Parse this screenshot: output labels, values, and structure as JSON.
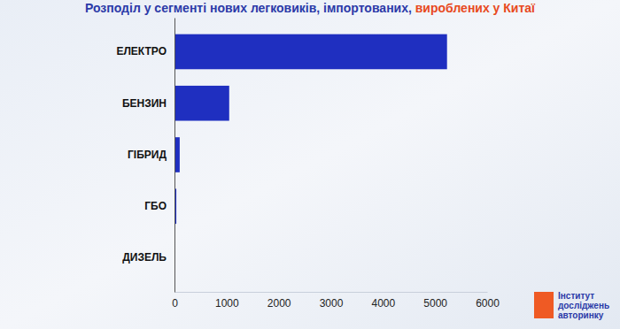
{
  "chart_data": {
    "type": "bar",
    "orientation": "horizontal",
    "title": [
      "Розподіл у сегменті нових легковиків, імпортованих, ",
      "вироблених у Китаї"
    ],
    "categories": [
      "ЕЛЕКТРО",
      "БЕНЗИН",
      "ГІБРИД",
      "ГБО",
      "ДИЗЕЛЬ"
    ],
    "values": [
      5230,
      1050,
      100,
      35,
      0
    ],
    "color": "#1f2fc0",
    "xlim": [
      0,
      6000
    ],
    "xticks": [
      0,
      1000,
      2000,
      3000,
      4000,
      5000,
      6000
    ],
    "grid": false,
    "annotations": [
      "Інститут досліджень авторинку"
    ]
  }
}
